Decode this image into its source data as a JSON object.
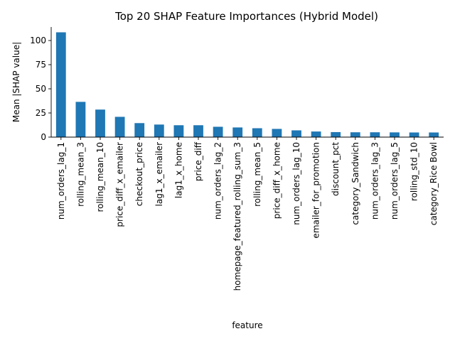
{
  "chart_data": {
    "type": "bar",
    "title": "Top 20 SHAP Feature Importances (Hybrid Model)",
    "xlabel": "feature",
    "ylabel": "Mean |SHAP value|",
    "ylim": [
      0,
      114
    ],
    "yticks": [
      0,
      25,
      50,
      75,
      100
    ],
    "grid": false,
    "bar_color": "#1f77b4",
    "categories": [
      "num_orders_lag_1",
      "rolling_mean_3",
      "rolling_mean_10",
      "price_diff_x_emailer",
      "checkout_price",
      "lag1_x_emailer",
      "lag1_x_home",
      "price_diff",
      "num_orders_lag_2",
      "homepage_featured_rolling_sum_3",
      "rolling_mean_5",
      "price_diff_x_home",
      "num_orders_lag_10",
      "emailer_for_promotion",
      "discount_pct",
      "category_Sandwich",
      "num_orders_lag_3",
      "num_orders_lag_5",
      "rolling_std_10",
      "category_Rice Bowl"
    ],
    "values": [
      108.5,
      36.5,
      28.5,
      21.0,
      14.5,
      13.0,
      12.3,
      12.3,
      10.7,
      10.0,
      9.2,
      8.5,
      7.0,
      5.8,
      5.2,
      5.0,
      5.0,
      4.9,
      4.8,
      4.8
    ]
  }
}
